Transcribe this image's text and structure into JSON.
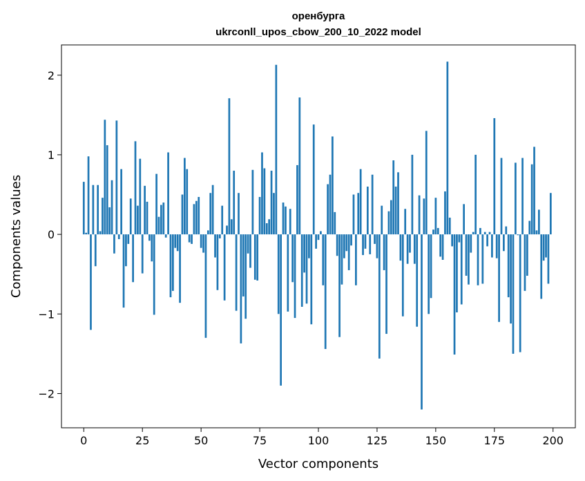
{
  "chart_data": {
    "type": "bar",
    "title": "оренбурга",
    "subtitle": "ukrconll_upos_cbow_200_10_2022 model",
    "xlabel": "Vector components",
    "ylabel": "Components values",
    "xlim": [
      -9.5,
      209.5
    ],
    "ylim": [
      -2.43,
      2.38
    ],
    "xticks": [
      0,
      25,
      50,
      75,
      100,
      125,
      150,
      175,
      200
    ],
    "yticks": [
      -2,
      -1,
      0,
      1,
      2
    ],
    "ytick_labels": [
      "−2",
      "−1",
      "0",
      "1",
      "2"
    ],
    "grid": false,
    "bar_color": "#1f77b4",
    "x": [
      0,
      1,
      2,
      3,
      4,
      5,
      6,
      7,
      8,
      9,
      10,
      11,
      12,
      13,
      14,
      15,
      16,
      17,
      18,
      19,
      20,
      21,
      22,
      23,
      24,
      25,
      26,
      27,
      28,
      29,
      30,
      31,
      32,
      33,
      34,
      35,
      36,
      37,
      38,
      39,
      40,
      41,
      42,
      43,
      44,
      45,
      46,
      47,
      48,
      49,
      50,
      51,
      52,
      53,
      54,
      55,
      56,
      57,
      58,
      59,
      60,
      61,
      62,
      63,
      64,
      65,
      66,
      67,
      68,
      69,
      70,
      71,
      72,
      73,
      74,
      75,
      76,
      77,
      78,
      79,
      80,
      81,
      82,
      83,
      84,
      85,
      86,
      87,
      88,
      89,
      90,
      91,
      92,
      93,
      94,
      95,
      96,
      97,
      98,
      99,
      100,
      101,
      102,
      103,
      104,
      105,
      106,
      107,
      108,
      109,
      110,
      111,
      112,
      113,
      114,
      115,
      116,
      117,
      118,
      119,
      120,
      121,
      122,
      123,
      124,
      125,
      126,
      127,
      128,
      129,
      130,
      131,
      132,
      133,
      134,
      135,
      136,
      137,
      138,
      139,
      140,
      141,
      142,
      143,
      144,
      145,
      146,
      147,
      148,
      149,
      150,
      151,
      152,
      153,
      154,
      155,
      156,
      157,
      158,
      159,
      160,
      161,
      162,
      163,
      164,
      165,
      166,
      167,
      168,
      169,
      170,
      171,
      172,
      173,
      174,
      175,
      176,
      177,
      178,
      179,
      180,
      181,
      182,
      183,
      184,
      185,
      186,
      187,
      188,
      189,
      190,
      191,
      192,
      193,
      194,
      195,
      196,
      197,
      198,
      199
    ],
    "values": [
      0.66,
      0.02,
      0.98,
      -1.2,
      0.62,
      -0.4,
      0.62,
      0.04,
      0.46,
      1.44,
      1.12,
      0.34,
      0.68,
      -0.24,
      1.43,
      -0.06,
      0.82,
      -0.92,
      -0.4,
      -0.12,
      0.45,
      -0.6,
      1.17,
      0.36,
      0.95,
      -0.49,
      0.61,
      0.41,
      -0.08,
      -0.34,
      -1.01,
      0.76,
      0.22,
      0.37,
      0.4,
      -0.04,
      1.03,
      -0.79,
      -0.71,
      -0.17,
      -0.21,
      -0.86,
      0.5,
      0.96,
      0.82,
      -0.1,
      -0.12,
      0.38,
      0.42,
      0.47,
      -0.17,
      -0.23,
      -1.3,
      0.05,
      0.52,
      0.62,
      -0.29,
      -0.7,
      -0.05,
      0.36,
      -0.83,
      0.11,
      1.71,
      0.19,
      0.8,
      -0.96,
      0.52,
      -1.37,
      -0.78,
      -1.06,
      -0.24,
      -0.42,
      0.81,
      -0.57,
      -0.58,
      0.47,
      1.03,
      0.83,
      0.14,
      0.19,
      0.8,
      0.52,
      2.13,
      -1.0,
      -1.9,
      0.4,
      0.35,
      -0.97,
      0.32,
      -0.6,
      -1.05,
      0.87,
      1.72,
      -0.91,
      -0.48,
      -0.87,
      -0.3,
      -1.13,
      1.38,
      -0.18,
      -0.07,
      0.04,
      -0.64,
      -1.44,
      0.63,
      0.75,
      1.23,
      0.28,
      -0.27,
      -1.29,
      -0.63,
      -0.3,
      -0.21,
      -0.45,
      -0.14,
      0.5,
      -0.64,
      0.52,
      0.82,
      -0.26,
      -0.18,
      0.6,
      -0.25,
      0.75,
      -0.12,
      -0.3,
      -1.56,
      0.36,
      -0.45,
      -1.25,
      0.29,
      0.43,
      0.93,
      0.6,
      0.78,
      -0.33,
      -1.03,
      0.32,
      -0.37,
      -0.23,
      1.0,
      -0.37,
      -1.16,
      0.49,
      -2.2,
      0.45,
      1.3,
      -1.0,
      -0.8,
      0.06,
      0.46,
      0.08,
      -0.28,
      -0.32,
      0.54,
      2.17,
      0.21,
      -0.15,
      -1.51,
      -0.98,
      -0.1,
      -0.88,
      0.38,
      -0.52,
      -0.63,
      -0.23,
      0.03,
      1.0,
      -0.64,
      0.08,
      -0.62,
      0.03,
      -0.15,
      0.03,
      -0.29,
      1.46,
      -0.3,
      -1.1,
      0.96,
      -0.21,
      0.1,
      -0.79,
      -1.12,
      -1.5,
      0.9,
      -0.01,
      -1.48,
      0.96,
      -0.71,
      -0.52,
      0.17,
      0.88,
      1.1,
      0.05,
      0.31,
      -0.81,
      -0.33,
      -0.29,
      -0.62,
      0.52
    ]
  }
}
